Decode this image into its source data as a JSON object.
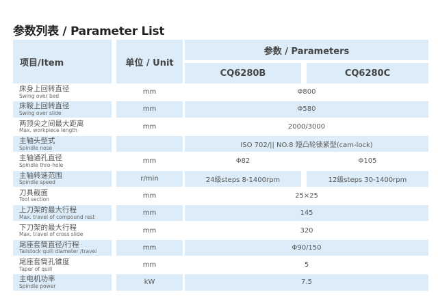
{
  "title": "参数列表 / Parameter List",
  "header": {
    "item": "项目/Item",
    "unit": "单位 / Unit",
    "parameters": "参数 / Parameters",
    "models": [
      "CQ6280B",
      "CQ6280C"
    ]
  },
  "colors": {
    "row_shade": "#dcedf9",
    "text": "#555555"
  },
  "rows": [
    {
      "zh": "床身上回转直径",
      "en": "Swing over bed",
      "unit": "mm",
      "value": "Φ800"
    },
    {
      "zh": "床鞍上回转直径",
      "en": "Swing over slide",
      "unit": "mm",
      "value": "Φ580"
    },
    {
      "zh": "两顶尖之间最大距离",
      "en": "Max. workpiece length",
      "unit": "mm",
      "value": "2000/3000"
    },
    {
      "zh": "主轴头型式",
      "en": "Spindle nose",
      "unit": "",
      "value": "ISO 702/|| NO.8 短凸轮锁紧型(cam-lock)"
    },
    {
      "zh": "主轴通孔直径",
      "en": "Spindle thro-hole",
      "unit": "mm",
      "values": [
        "Φ82",
        "Φ105"
      ]
    },
    {
      "zh": "主轴转速范围",
      "en": "Spindle speed",
      "unit": "r/min",
      "values": [
        "24级steps  8-1400rpm",
        "12级steps  30-1400rpm"
      ]
    },
    {
      "zh": "刀具截面",
      "en": "Tool section",
      "unit": "mm",
      "value": "25×25"
    },
    {
      "zh": "上刀架的最大行程",
      "en": "Max. travel of compound rest",
      "unit": "mm",
      "value": "145"
    },
    {
      "zh": "下刀架的最大行程",
      "en": "Max. travel of cross slide",
      "unit": "mm",
      "value": "320"
    },
    {
      "zh": "尾座套筒直径/行程",
      "en": "Tailstock quill diameter /travel",
      "unit": "mm",
      "value": "Φ90/150"
    },
    {
      "zh": "尾座套筒孔锥度",
      "en": "Taper of quill",
      "unit": "mm",
      "value": "5"
    },
    {
      "zh": "主电机功率",
      "en": "Spindle power",
      "unit": "kW",
      "value": "7.5"
    }
  ]
}
